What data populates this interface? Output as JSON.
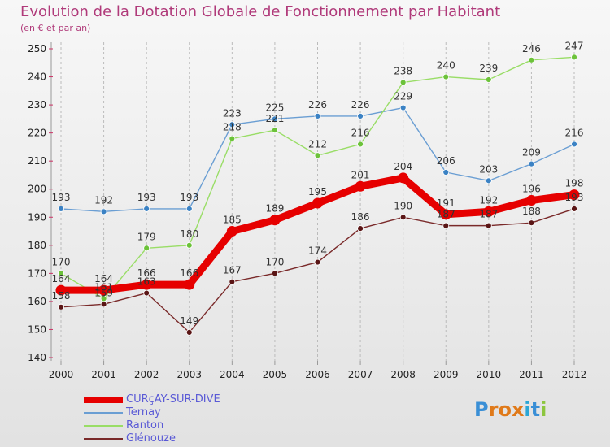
{
  "header": {
    "title": "Evolution de la Dotation Globale de Fonctionnement par Habitant",
    "subtitle": "(en € et par an)"
  },
  "logo": {
    "letters": [
      {
        "char": "P",
        "color": "#3a8fd6"
      },
      {
        "char": "r",
        "color": "#e07a1a"
      },
      {
        "char": "o",
        "color": "#e07a1a"
      },
      {
        "char": "x",
        "color": "#e07a1a"
      },
      {
        "char": "i",
        "color": "#2aa6d6"
      },
      {
        "char": "t",
        "color": "#3a8fd6"
      },
      {
        "char": "i",
        "color": "#8dc63f"
      }
    ]
  },
  "chart_data": {
    "type": "line",
    "x": [
      "2000",
      "2001",
      "2002",
      "2003",
      "2004",
      "2005",
      "2006",
      "2007",
      "2008",
      "2009",
      "2010",
      "2011",
      "2012"
    ],
    "yticks": [
      140,
      150,
      160,
      170,
      180,
      190,
      200,
      210,
      220,
      230,
      240,
      250
    ],
    "ylim": [
      140,
      250
    ],
    "grid": "vertical-dashed",
    "legend_position": "bottom-left",
    "series": [
      {
        "name": "CURçAY-SUR-DIVE",
        "color": "#e60000",
        "marker": "#e60000",
        "values": [
          164,
          164,
          166,
          166,
          185,
          189,
          195,
          201,
          204,
          191,
          192,
          196,
          198
        ],
        "labels": [
          "164",
          "164",
          "166",
          "166",
          "185",
          "189",
          "195",
          "201",
          "204",
          "191",
          "192",
          "196",
          "198"
        ]
      },
      {
        "name": "Ternay",
        "color": "#6a9ed3",
        "marker": "#3b82c4",
        "values": [
          193,
          192,
          193,
          193,
          223,
          225,
          226,
          226,
          229,
          206,
          203,
          209,
          216
        ],
        "labels": [
          "193",
          "192",
          "193",
          "193",
          "223",
          "225",
          "226",
          "226",
          "229",
          "206",
          "203",
          "209",
          "216"
        ]
      },
      {
        "name": "Ranton",
        "color": "#99dd66",
        "marker": "#6cc23a",
        "values": [
          170,
          161,
          179,
          180,
          218,
          221,
          212,
          216,
          238,
          240,
          239,
          246,
          247
        ],
        "labels": [
          "170",
          "161",
          "179",
          "180",
          "218",
          "221",
          "212",
          "216",
          "238",
          "240",
          "239",
          "246",
          "247"
        ]
      },
      {
        "name": "Glénouze",
        "color": "#7a2a2a",
        "marker": "#5a1515",
        "values": [
          158,
          159,
          163,
          149,
          167,
          170,
          174,
          186,
          190,
          187,
          187,
          188,
          193
        ],
        "labels": [
          "158",
          "159",
          "163",
          "149",
          "167",
          "170",
          "174",
          "186",
          "190",
          "187",
          "187",
          "188",
          "193"
        ]
      }
    ]
  }
}
